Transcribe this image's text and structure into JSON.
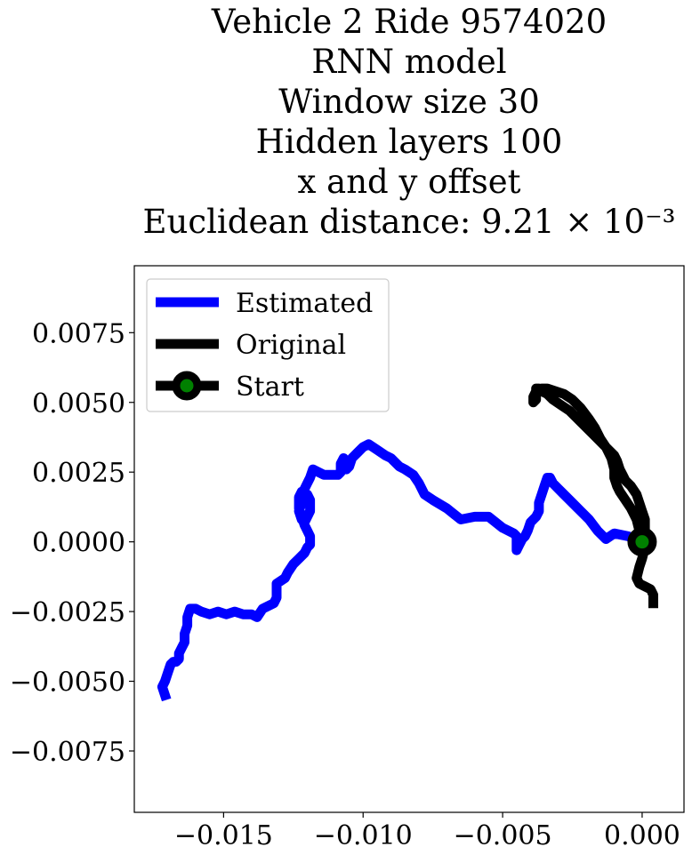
{
  "chart_data": {
    "type": "line",
    "title_lines": [
      "Vehicle 2 Ride 9574020",
      "RNN model",
      "Window size 30",
      "Hidden layers 100",
      "x and y offset",
      "Euclidean distance: 9.21 × 10⁻³"
    ],
    "xlabel": "",
    "ylabel": "",
    "xlim": [
      -0.0182,
      0.0015
    ],
    "ylim": [
      -0.0097,
      0.0099
    ],
    "xticks": [
      {
        "value": -0.015,
        "label": "−0.015"
      },
      {
        "value": -0.01,
        "label": "−0.010"
      },
      {
        "value": -0.005,
        "label": "−0.005"
      },
      {
        "value": 0.0,
        "label": "0.000"
      }
    ],
    "yticks": [
      {
        "value": 0.0075,
        "label": "0.0075"
      },
      {
        "value": 0.005,
        "label": "0.0050"
      },
      {
        "value": 0.0025,
        "label": "0.0025"
      },
      {
        "value": 0.0,
        "label": "0.0000"
      },
      {
        "value": -0.0025,
        "label": "−0.0025"
      },
      {
        "value": -0.005,
        "label": "−0.0050"
      },
      {
        "value": -0.0075,
        "label": "−0.0075"
      }
    ],
    "grid": false,
    "legend_position": "top-left",
    "series": [
      {
        "name": "Estimated",
        "color": "#0000ff",
        "x": [
          0.0,
          -0.0005,
          -0.001,
          -0.0013,
          -0.0016,
          -0.0019,
          -0.0022,
          -0.0025,
          -0.0028,
          -0.003,
          -0.0032,
          -0.0033,
          -0.0034,
          -0.0035,
          -0.0036,
          -0.0037,
          -0.0037,
          -0.0038,
          -0.0039,
          -0.004,
          -0.0041,
          -0.0042,
          -0.0043,
          -0.0044,
          -0.0045,
          -0.0045,
          -0.0046,
          -0.005,
          -0.0055,
          -0.006,
          -0.0065,
          -0.007,
          -0.0075,
          -0.0078,
          -0.008,
          -0.0082,
          -0.0085,
          -0.0087,
          -0.009,
          -0.0092,
          -0.0095,
          -0.0098,
          -0.01,
          -0.0102,
          -0.0104,
          -0.0105,
          -0.0106,
          -0.0107,
          -0.0108,
          -0.0108,
          -0.0109,
          -0.011,
          -0.0112,
          -0.0114,
          -0.0116,
          -0.0118,
          -0.0119,
          -0.012,
          -0.0121,
          -0.0122,
          -0.0122,
          -0.0123,
          -0.0122,
          -0.0121,
          -0.012,
          -0.0119,
          -0.0119,
          -0.012,
          -0.0122,
          -0.0123,
          -0.0123,
          -0.0122,
          -0.0121,
          -0.012,
          -0.0119,
          -0.0119,
          -0.012,
          -0.0121,
          -0.0123,
          -0.0125,
          -0.0127,
          -0.0128,
          -0.0131,
          -0.0131,
          -0.0132,
          -0.0134,
          -0.0136,
          -0.0138,
          -0.014,
          -0.0143,
          -0.0146,
          -0.0149,
          -0.0152,
          -0.0155,
          -0.0158,
          -0.016,
          -0.0162,
          -0.0163,
          -0.0163,
          -0.0164,
          -0.0164,
          -0.0165,
          -0.0166,
          -0.0166,
          -0.0167,
          -0.0168,
          -0.0169,
          -0.017,
          -0.0171,
          -0.0172,
          -0.0171
        ],
        "y": [
          0.0,
          0.0002,
          0.0003,
          0.0001,
          0.0004,
          0.0008,
          0.0011,
          0.0014,
          0.0017,
          0.0019,
          0.0021,
          0.0023,
          0.0023,
          0.002,
          0.0017,
          0.0014,
          0.0011,
          0.0009,
          0.0008,
          0.0007,
          0.0004,
          0.0002,
          0.0001,
          -0.0001,
          -0.0003,
          0.0002,
          0.0003,
          0.0005,
          0.0009,
          0.0009,
          0.0008,
          0.0012,
          0.0015,
          0.0017,
          0.0021,
          0.0024,
          0.0026,
          0.0027,
          0.003,
          0.0031,
          0.0033,
          0.0035,
          0.0034,
          0.0032,
          0.003,
          0.0027,
          0.0026,
          0.003,
          0.0028,
          0.0025,
          0.0024,
          0.0024,
          0.0024,
          0.0024,
          0.0025,
          0.0026,
          0.0023,
          0.0021,
          0.0019,
          0.0017,
          0.0014,
          0.0011,
          0.0008,
          0.0007,
          0.0009,
          0.0011,
          0.0015,
          0.0017,
          0.0018,
          0.0016,
          0.0012,
          0.0009,
          0.0006,
          0.0004,
          0.0002,
          -0.0001,
          -0.0002,
          -0.0004,
          -0.0006,
          -0.0008,
          -0.0011,
          -0.0013,
          -0.0015,
          -0.002,
          -0.0022,
          -0.0023,
          -0.0024,
          -0.0027,
          -0.0026,
          -0.0026,
          -0.0025,
          -0.0026,
          -0.0025,
          -0.0026,
          -0.0025,
          -0.0024,
          -0.0024,
          -0.0027,
          -0.003,
          -0.0033,
          -0.0036,
          -0.0038,
          -0.004,
          -0.0042,
          -0.0043,
          -0.0043,
          -0.0044,
          -0.0047,
          -0.005,
          -0.0052,
          -0.0055
        ]
      },
      {
        "name": "Original",
        "color": "#000000",
        "x": [
          0.0004,
          0.0004,
          0.0003,
          0.0001,
          -0.0001,
          -0.0002,
          -0.0001,
          0.0,
          0.0001,
          0.0001,
          0.0001,
          0.0,
          -0.0001,
          -0.0002,
          -0.0004,
          -0.0006,
          -0.0007,
          -0.0008,
          -0.0009,
          -0.001,
          -0.0012,
          -0.0014,
          -0.0017,
          -0.002,
          -0.0023,
          -0.0026,
          -0.0029,
          -0.0032,
          -0.0034,
          -0.0036,
          -0.0037,
          -0.0038,
          -0.0038,
          -0.0039,
          -0.0039,
          -0.0038,
          -0.0038,
          -0.0036,
          -0.0034,
          -0.0031,
          -0.0028,
          -0.0025,
          -0.0022,
          -0.0019,
          -0.0017,
          -0.0015,
          -0.0013,
          -0.0011,
          -0.001,
          -0.001,
          -0.0009,
          -0.0008,
          -0.0006,
          -0.0004,
          -0.0002,
          -0.0001,
          0.0
        ],
        "y": [
          -0.0022,
          -0.0019,
          -0.0017,
          -0.0016,
          -0.0015,
          -0.0013,
          -0.0009,
          -0.0006,
          -0.0002,
          0.0003,
          0.0008,
          0.0011,
          0.0014,
          0.0017,
          0.002,
          0.0022,
          0.0024,
          0.0026,
          0.0029,
          0.0031,
          0.0033,
          0.0035,
          0.0038,
          0.0041,
          0.0044,
          0.0047,
          0.0049,
          0.0051,
          0.0053,
          0.0054,
          0.0055,
          0.0055,
          0.0054,
          0.0052,
          0.005,
          0.0051,
          0.0054,
          0.0055,
          0.0055,
          0.0054,
          0.0053,
          0.0051,
          0.0048,
          0.0044,
          0.0041,
          0.0037,
          0.0034,
          0.003,
          0.0026,
          0.0023,
          0.002,
          0.0018,
          0.0015,
          0.0012,
          0.0008,
          0.0004,
          0.0
        ]
      }
    ],
    "start": {
      "name": "Start",
      "x": 0.0,
      "y": 0.0,
      "marker_edge": "#000000",
      "marker_face": "#008000"
    }
  }
}
